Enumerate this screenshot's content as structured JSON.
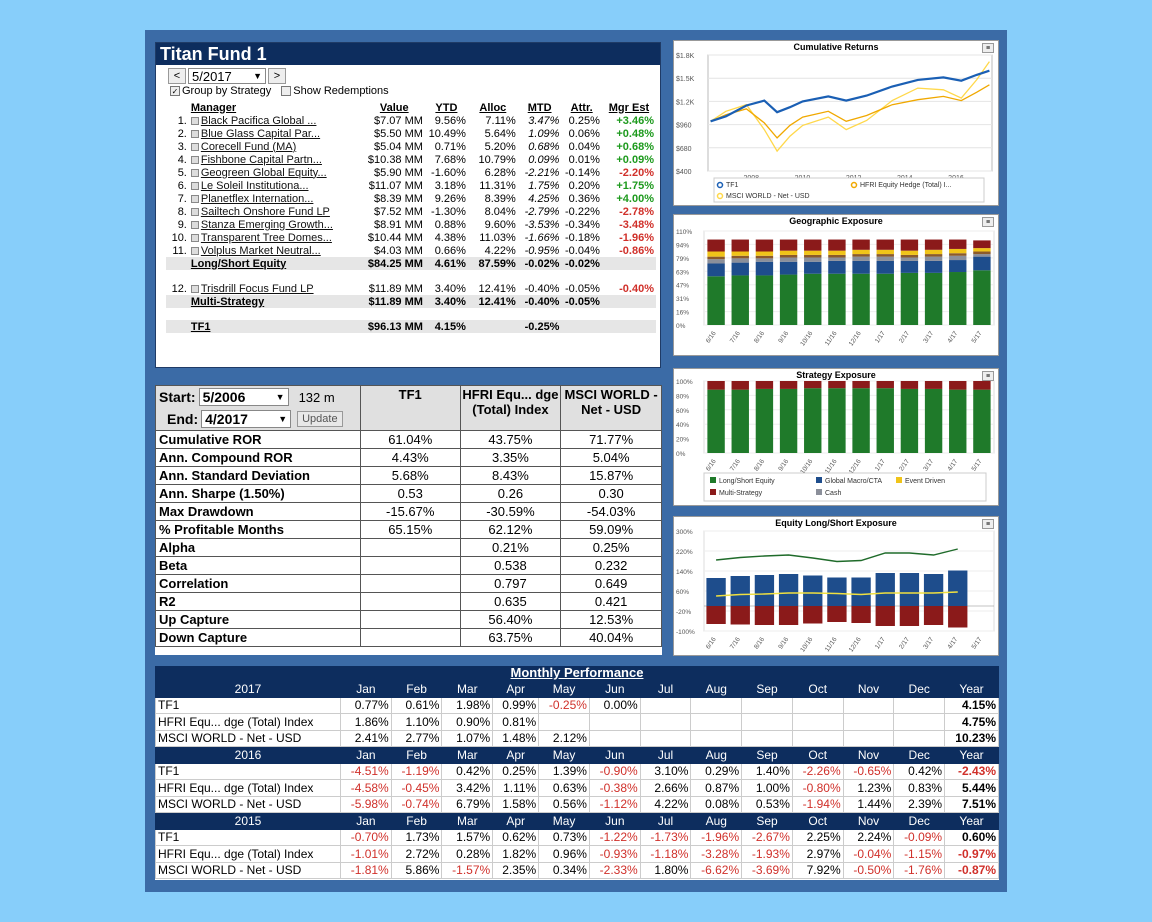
{
  "fund": {
    "title": "Titan Fund 1",
    "period": "5/2017",
    "group_by_strategy": "Group by Strategy",
    "show_redemptions": "Show Redemptions",
    "headers": [
      "Manager",
      "Value",
      "YTD",
      "Alloc",
      "MTD",
      "Attr.",
      "Mgr Est"
    ],
    "managers": [
      {
        "n": "1.",
        "name": "Black Pacifica Global ...",
        "value": "$7.07 MM",
        "ytd": "9.56%",
        "alloc": "7.11%",
        "mtd": "3.47%",
        "attr": "0.25%",
        "est": "+3.46%",
        "sign": "pos"
      },
      {
        "n": "2.",
        "name": "Blue Glass Capital Par...",
        "value": "$5.50 MM",
        "ytd": "10.49%",
        "alloc": "5.64%",
        "mtd": "1.09%",
        "attr": "0.06%",
        "est": "+0.48%",
        "sign": "pos"
      },
      {
        "n": "3.",
        "name": "Corecell Fund (MA)",
        "value": "$5.04 MM",
        "ytd": "0.71%",
        "alloc": "5.20%",
        "mtd": "0.68%",
        "attr": "0.04%",
        "est": "+0.68%",
        "sign": "pos"
      },
      {
        "n": "4.",
        "name": "Fishbone Capital Partn...",
        "value": "$10.38 MM",
        "ytd": "7.68%",
        "alloc": "10.79%",
        "mtd": "0.09%",
        "attr": "0.01%",
        "est": "+0.09%",
        "sign": "pos"
      },
      {
        "n": "5.",
        "name": "Geogreen Global Equity...",
        "value": "$5.90 MM",
        "ytd": "-1.60%",
        "alloc": "6.28%",
        "mtd": "-2.21%",
        "attr": "-0.14%",
        "est": "-2.20%",
        "sign": "neg"
      },
      {
        "n": "6.",
        "name": "Le Soleil Institutiona...",
        "value": "$11.07 MM",
        "ytd": "3.18%",
        "alloc": "11.31%",
        "mtd": "1.75%",
        "attr": "0.20%",
        "est": "+1.75%",
        "sign": "pos"
      },
      {
        "n": "7.",
        "name": "Planetflex Internation...",
        "value": "$8.39 MM",
        "ytd": "9.26%",
        "alloc": "8.39%",
        "mtd": "4.25%",
        "attr": "0.36%",
        "est": "+4.00%",
        "sign": "pos"
      },
      {
        "n": "8.",
        "name": "Sailtech Onshore Fund LP",
        "value": "$7.52 MM",
        "ytd": "-1.30%",
        "alloc": "8.04%",
        "mtd": "-2.79%",
        "attr": "-0.22%",
        "est": "-2.78%",
        "sign": "neg"
      },
      {
        "n": "9.",
        "name": "Stanza Emerging Growth...",
        "value": "$8.91 MM",
        "ytd": "0.88%",
        "alloc": "9.60%",
        "mtd": "-3.53%",
        "attr": "-0.34%",
        "est": "-3.48%",
        "sign": "neg"
      },
      {
        "n": "10.",
        "name": "Transparent Tree Domes...",
        "value": "$10.44 MM",
        "ytd": "4.38%",
        "alloc": "11.03%",
        "mtd": "-1.66%",
        "attr": "-0.18%",
        "est": "-1.96%",
        "sign": "neg"
      },
      {
        "n": "11.",
        "name": "Volplus Market Neutral...",
        "value": "$4.03 MM",
        "ytd": "0.66%",
        "alloc": "4.22%",
        "mtd": "-0.95%",
        "attr": "-0.04%",
        "est": "-0.86%",
        "sign": "neg"
      }
    ],
    "group1": {
      "name": "Long/Short Equity",
      "value": "$84.25 MM",
      "ytd": "4.61%",
      "alloc": "87.59%",
      "mtd": "-0.02%",
      "attr": "-0.02%"
    },
    "manager12": {
      "n": "12.",
      "name": "Trisdrill Focus Fund LP",
      "value": "$11.89 MM",
      "ytd": "3.40%",
      "alloc": "12.41%",
      "mtd": "-0.40%",
      "attr": "-0.05%",
      "est": "-0.40%"
    },
    "group2": {
      "name": "Multi-Strategy",
      "value": "$11.89 MM",
      "ytd": "3.40%",
      "alloc": "12.41%",
      "mtd": "-0.40%",
      "attr": "-0.05%"
    },
    "total": {
      "name": "TF1",
      "value": "$96.13 MM",
      "ytd": "4.15%",
      "mtd": "-0.25%"
    }
  },
  "stats": {
    "start_label": "Start:",
    "start": "5/2006",
    "months": "132 m",
    "end_label": "End:",
    "end": "4/2017",
    "update": "Update",
    "columns": [
      "TF1",
      "HFRI Equ... dge (Total) Index",
      "MSCI WORLD - Net - USD"
    ],
    "rows": [
      {
        "label": "Cumulative ROR",
        "v": [
          "61.04%",
          "43.75%",
          "71.77%"
        ]
      },
      {
        "label": "Ann. Compound ROR",
        "v": [
          "4.43%",
          "3.35%",
          "5.04%"
        ]
      },
      {
        "label": "Ann. Standard Deviation",
        "v": [
          "5.68%",
          "8.43%",
          "15.87%"
        ]
      },
      {
        "label": "Ann. Sharpe (1.50%)",
        "v": [
          "0.53",
          "0.26",
          "0.30"
        ]
      },
      {
        "label": "Max Drawdown",
        "v": [
          "-15.67%",
          "-30.59%",
          "-54.03%"
        ]
      },
      {
        "label": "% Profitable Months",
        "v": [
          "65.15%",
          "62.12%",
          "59.09%"
        ]
      },
      {
        "label": "Alpha",
        "v": [
          "",
          "0.21%",
          "0.25%"
        ]
      },
      {
        "label": "Beta",
        "v": [
          "",
          "0.538",
          "0.232"
        ]
      },
      {
        "label": "Correlation",
        "v": [
          "",
          "0.797",
          "0.649"
        ]
      },
      {
        "label": "R2",
        "v": [
          "",
          "0.635",
          "0.421"
        ]
      },
      {
        "label": "Up Capture",
        "v": [
          "",
          "56.40%",
          "12.53%"
        ]
      },
      {
        "label": "Down Capture",
        "v": [
          "",
          "63.75%",
          "40.04%"
        ]
      }
    ]
  },
  "monthly": {
    "title": "Monthly Performance",
    "months": [
      "Jan",
      "Feb",
      "Mar",
      "Apr",
      "May",
      "Jun",
      "Jul",
      "Aug",
      "Sep",
      "Oct",
      "Nov",
      "Dec",
      "Year"
    ],
    "blocks": [
      {
        "year": "2017",
        "rows": [
          {
            "name": "TF1",
            "v": [
              "0.77%",
              "0.61%",
              "1.98%",
              "0.99%",
              "-0.25%",
              "0.00%",
              "",
              "",
              "",
              "",
              "",
              "",
              "4.15%"
            ]
          },
          {
            "name": "HFRI Equ... dge (Total) Index",
            "v": [
              "1.86%",
              "1.10%",
              "0.90%",
              "0.81%",
              "",
              "",
              "",
              "",
              "",
              "",
              "",
              "",
              "4.75%"
            ]
          },
          {
            "name": "MSCI WORLD - Net - USD",
            "v": [
              "2.41%",
              "2.77%",
              "1.07%",
              "1.48%",
              "2.12%",
              "",
              "",
              "",
              "",
              "",
              "",
              "",
              "10.23%"
            ]
          }
        ]
      },
      {
        "year": "2016",
        "rows": [
          {
            "name": "TF1",
            "v": [
              "-4.51%",
              "-1.19%",
              "0.42%",
              "0.25%",
              "1.39%",
              "-0.90%",
              "3.10%",
              "0.29%",
              "1.40%",
              "-2.26%",
              "-0.65%",
              "0.42%",
              "-2.43%"
            ]
          },
          {
            "name": "HFRI Equ... dge (Total) Index",
            "v": [
              "-4.58%",
              "-0.45%",
              "3.42%",
              "1.11%",
              "0.63%",
              "-0.38%",
              "2.66%",
              "0.87%",
              "1.00%",
              "-0.80%",
              "1.23%",
              "0.83%",
              "5.44%"
            ]
          },
          {
            "name": "MSCI WORLD - Net - USD",
            "v": [
              "-5.98%",
              "-0.74%",
              "6.79%",
              "1.58%",
              "0.56%",
              "-1.12%",
              "4.22%",
              "0.08%",
              "0.53%",
              "-1.94%",
              "1.44%",
              "2.39%",
              "7.51%"
            ]
          }
        ]
      },
      {
        "year": "2015",
        "rows": [
          {
            "name": "TF1",
            "v": [
              "-0.70%",
              "1.73%",
              "1.57%",
              "0.62%",
              "0.73%",
              "-1.22%",
              "-1.73%",
              "-1.96%",
              "-2.67%",
              "2.25%",
              "2.24%",
              "-0.09%",
              "0.60%"
            ]
          },
          {
            "name": "HFRI Equ... dge (Total) Index",
            "v": [
              "-1.01%",
              "2.72%",
              "0.28%",
              "1.82%",
              "0.96%",
              "-0.93%",
              "-1.18%",
              "-3.28%",
              "-1.93%",
              "2.97%",
              "-0.04%",
              "-1.15%",
              "-0.97%"
            ]
          },
          {
            "name": "MSCI WORLD - Net - USD",
            "v": [
              "-1.81%",
              "5.86%",
              "-1.57%",
              "2.35%",
              "0.34%",
              "-2.33%",
              "1.80%",
              "-6.62%",
              "-3.69%",
              "7.92%",
              "-0.50%",
              "-1.76%",
              "-0.87%"
            ]
          }
        ]
      }
    ]
  },
  "chart_data": [
    {
      "type": "line",
      "title": "Cumulative Returns",
      "y_ticks": [
        "$1.8K",
        "$1.5K",
        "$1.2K",
        "$960",
        "$680",
        "$400"
      ],
      "x_ticks": [
        "2008",
        "2010",
        "2012",
        "2014",
        "2016"
      ],
      "ylim": [
        400,
        1800
      ],
      "legend": [
        "TF1",
        "HFRI Equity Hedge (Total) I...",
        "MSCI WORLD - Net - USD"
      ],
      "series": [
        {
          "name": "TF1",
          "color": "#1a5fb4",
          "x": [
            2006.4,
            2007.0,
            2007.8,
            2008.5,
            2009.0,
            2009.5,
            2010.0,
            2011.0,
            2011.7,
            2012.5,
            2013.5,
            2014.5,
            2015.5,
            2016.2,
            2016.8,
            2017.3
          ],
          "y": [
            1000,
            1060,
            1190,
            1250,
            1110,
            1170,
            1240,
            1300,
            1250,
            1310,
            1420,
            1500,
            1530,
            1490,
            1560,
            1610
          ]
        },
        {
          "name": "HFRI Equity Hedge (Total) I...",
          "color": "#f0a800",
          "x": [
            2006.4,
            2007.0,
            2007.8,
            2008.5,
            2009.0,
            2009.5,
            2010.0,
            2011.0,
            2011.7,
            2012.5,
            2013.5,
            2014.5,
            2015.5,
            2016.2,
            2016.8,
            2017.3
          ],
          "y": [
            1000,
            1080,
            1150,
            980,
            800,
            950,
            1050,
            1120,
            1000,
            1070,
            1200,
            1260,
            1300,
            1250,
            1350,
            1440
          ]
        },
        {
          "name": "MSCI WORLD - Net - USD",
          "color": "#ffd84a",
          "x": [
            2006.4,
            2007.0,
            2007.8,
            2008.5,
            2009.0,
            2009.5,
            2010.0,
            2011.0,
            2011.7,
            2012.5,
            2013.5,
            2014.5,
            2015.5,
            2016.2,
            2016.8,
            2017.3
          ],
          "y": [
            1000,
            1120,
            1200,
            900,
            640,
            820,
            950,
            1050,
            900,
            1010,
            1250,
            1400,
            1380,
            1280,
            1500,
            1720
          ]
        }
      ]
    },
    {
      "type": "bar",
      "title": "Geographic Exposure",
      "y_ticks": [
        "110%",
        "94%",
        "79%",
        "63%",
        "47%",
        "31%",
        "16%",
        "0%"
      ],
      "categories": [
        "6/16",
        "7/16",
        "8/16",
        "9/16",
        "10/16",
        "11/16",
        "12/16",
        "1/17",
        "2/17",
        "3/17",
        "4/17",
        "5/17"
      ],
      "series": [
        {
          "name": "green",
          "color": "#1f7a2a",
          "values": [
            57,
            58,
            58,
            59,
            60,
            60,
            60,
            60,
            61,
            61,
            62,
            64
          ]
        },
        {
          "name": "blue",
          "color": "#1e4d8c",
          "values": [
            15,
            15,
            16,
            15,
            14,
            15,
            15,
            15,
            14,
            14,
            14,
            16
          ]
        },
        {
          "name": "grey",
          "color": "#8b8f9a",
          "values": [
            5,
            5,
            4,
            5,
            5,
            4,
            5,
            5,
            4,
            5,
            5,
            3
          ]
        },
        {
          "name": "brown",
          "color": "#8b5a2b",
          "values": [
            3,
            3,
            3,
            3,
            3,
            3,
            3,
            3,
            3,
            3,
            3,
            3
          ]
        },
        {
          "name": "yellow",
          "color": "#f0c419",
          "values": [
            6,
            5,
            5,
            5,
            5,
            5,
            5,
            5,
            5,
            5,
            5,
            4
          ]
        },
        {
          "name": "red",
          "color": "#8b1a1a",
          "values": [
            14,
            14,
            14,
            13,
            13,
            13,
            12,
            12,
            13,
            12,
            11,
            9
          ]
        }
      ]
    },
    {
      "type": "bar",
      "title": "Strategy Exposure",
      "y_ticks": [
        "100%",
        "80%",
        "60%",
        "40%",
        "20%",
        "0%"
      ],
      "categories": [
        "6/16",
        "7/16",
        "8/16",
        "9/16",
        "10/16",
        "11/16",
        "12/16",
        "1/17",
        "2/17",
        "3/17",
        "4/17",
        "5/17"
      ],
      "legend": [
        "Long/Short Equity",
        "Global Macro/CTA",
        "Event Driven",
        "Multi-Strategy",
        "Cash"
      ],
      "series": [
        {
          "name": "Long/Short Equity",
          "color": "#1f7a2a",
          "values": [
            88,
            88,
            89,
            89,
            90,
            90,
            90,
            90,
            89,
            89,
            88,
            88
          ]
        },
        {
          "name": "Multi-Strategy",
          "color": "#8b1a1a",
          "values": [
            12,
            12,
            11,
            11,
            10,
            10,
            10,
            10,
            11,
            11,
            12,
            12
          ]
        }
      ],
      "legend_colors": [
        "#1f7a2a",
        "#1e4d8c",
        "#f0c419",
        "#8b1a1a",
        "#8b8f9a"
      ]
    },
    {
      "type": "bar",
      "title": "Equity Long/Short Exposure",
      "y_ticks": [
        "300%",
        "220%",
        "140%",
        "60%",
        "-20%",
        "-100%"
      ],
      "categories": [
        "6/16",
        "7/16",
        "8/16",
        "9/16",
        "10/16",
        "11/16",
        "12/16",
        "1/17",
        "2/17",
        "3/17",
        "4/17",
        "5/17"
      ],
      "ylim": [
        -100,
        300
      ],
      "series": [
        {
          "name": "long",
          "color": "#1e4d8c",
          "values": [
            112,
            120,
            124,
            128,
            122,
            114,
            114,
            132,
            132,
            128,
            142,
            0
          ]
        },
        {
          "name": "short",
          "color": "#8b1a1a",
          "values": [
            -72,
            -74,
            -76,
            -76,
            -70,
            -64,
            -68,
            -80,
            -80,
            -76,
            -86,
            0
          ]
        },
        {
          "name": "gross",
          "color": "#1f6b2a",
          "values": [
            184,
            194,
            200,
            204,
            192,
            178,
            182,
            212,
            212,
            204,
            228,
            0
          ]
        },
        {
          "name": "net",
          "color": "#f0e040",
          "values": [
            40,
            46,
            48,
            52,
            52,
            50,
            46,
            52,
            52,
            52,
            56,
            0
          ]
        }
      ]
    }
  ]
}
